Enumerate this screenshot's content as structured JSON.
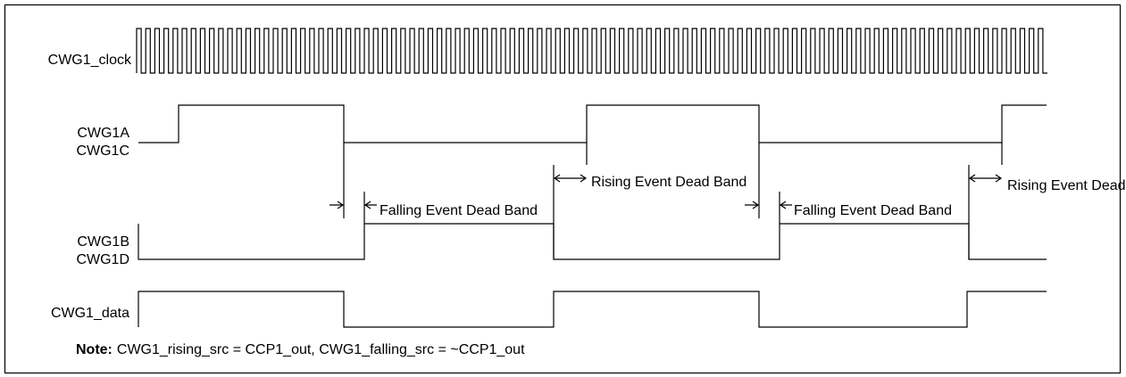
{
  "signals": [
    {
      "labels": [
        "CWG1_clock"
      ]
    },
    {
      "labels": [
        "CWG1A",
        "CWG1C"
      ]
    },
    {
      "labels": [
        "CWG1B",
        "CWG1D"
      ]
    },
    {
      "labels": [
        "CWG1_data"
      ]
    }
  ],
  "annotations": [
    "Falling Event Dead Band",
    "Rising Event Dead Band",
    "Falling Event Dead Band",
    "Rising Event Dead Band"
  ],
  "note": {
    "label": "Note:",
    "text": "CWG1_rising_src = CCP1_out, CWG1_falling_src = ~CCP1_out"
  }
}
